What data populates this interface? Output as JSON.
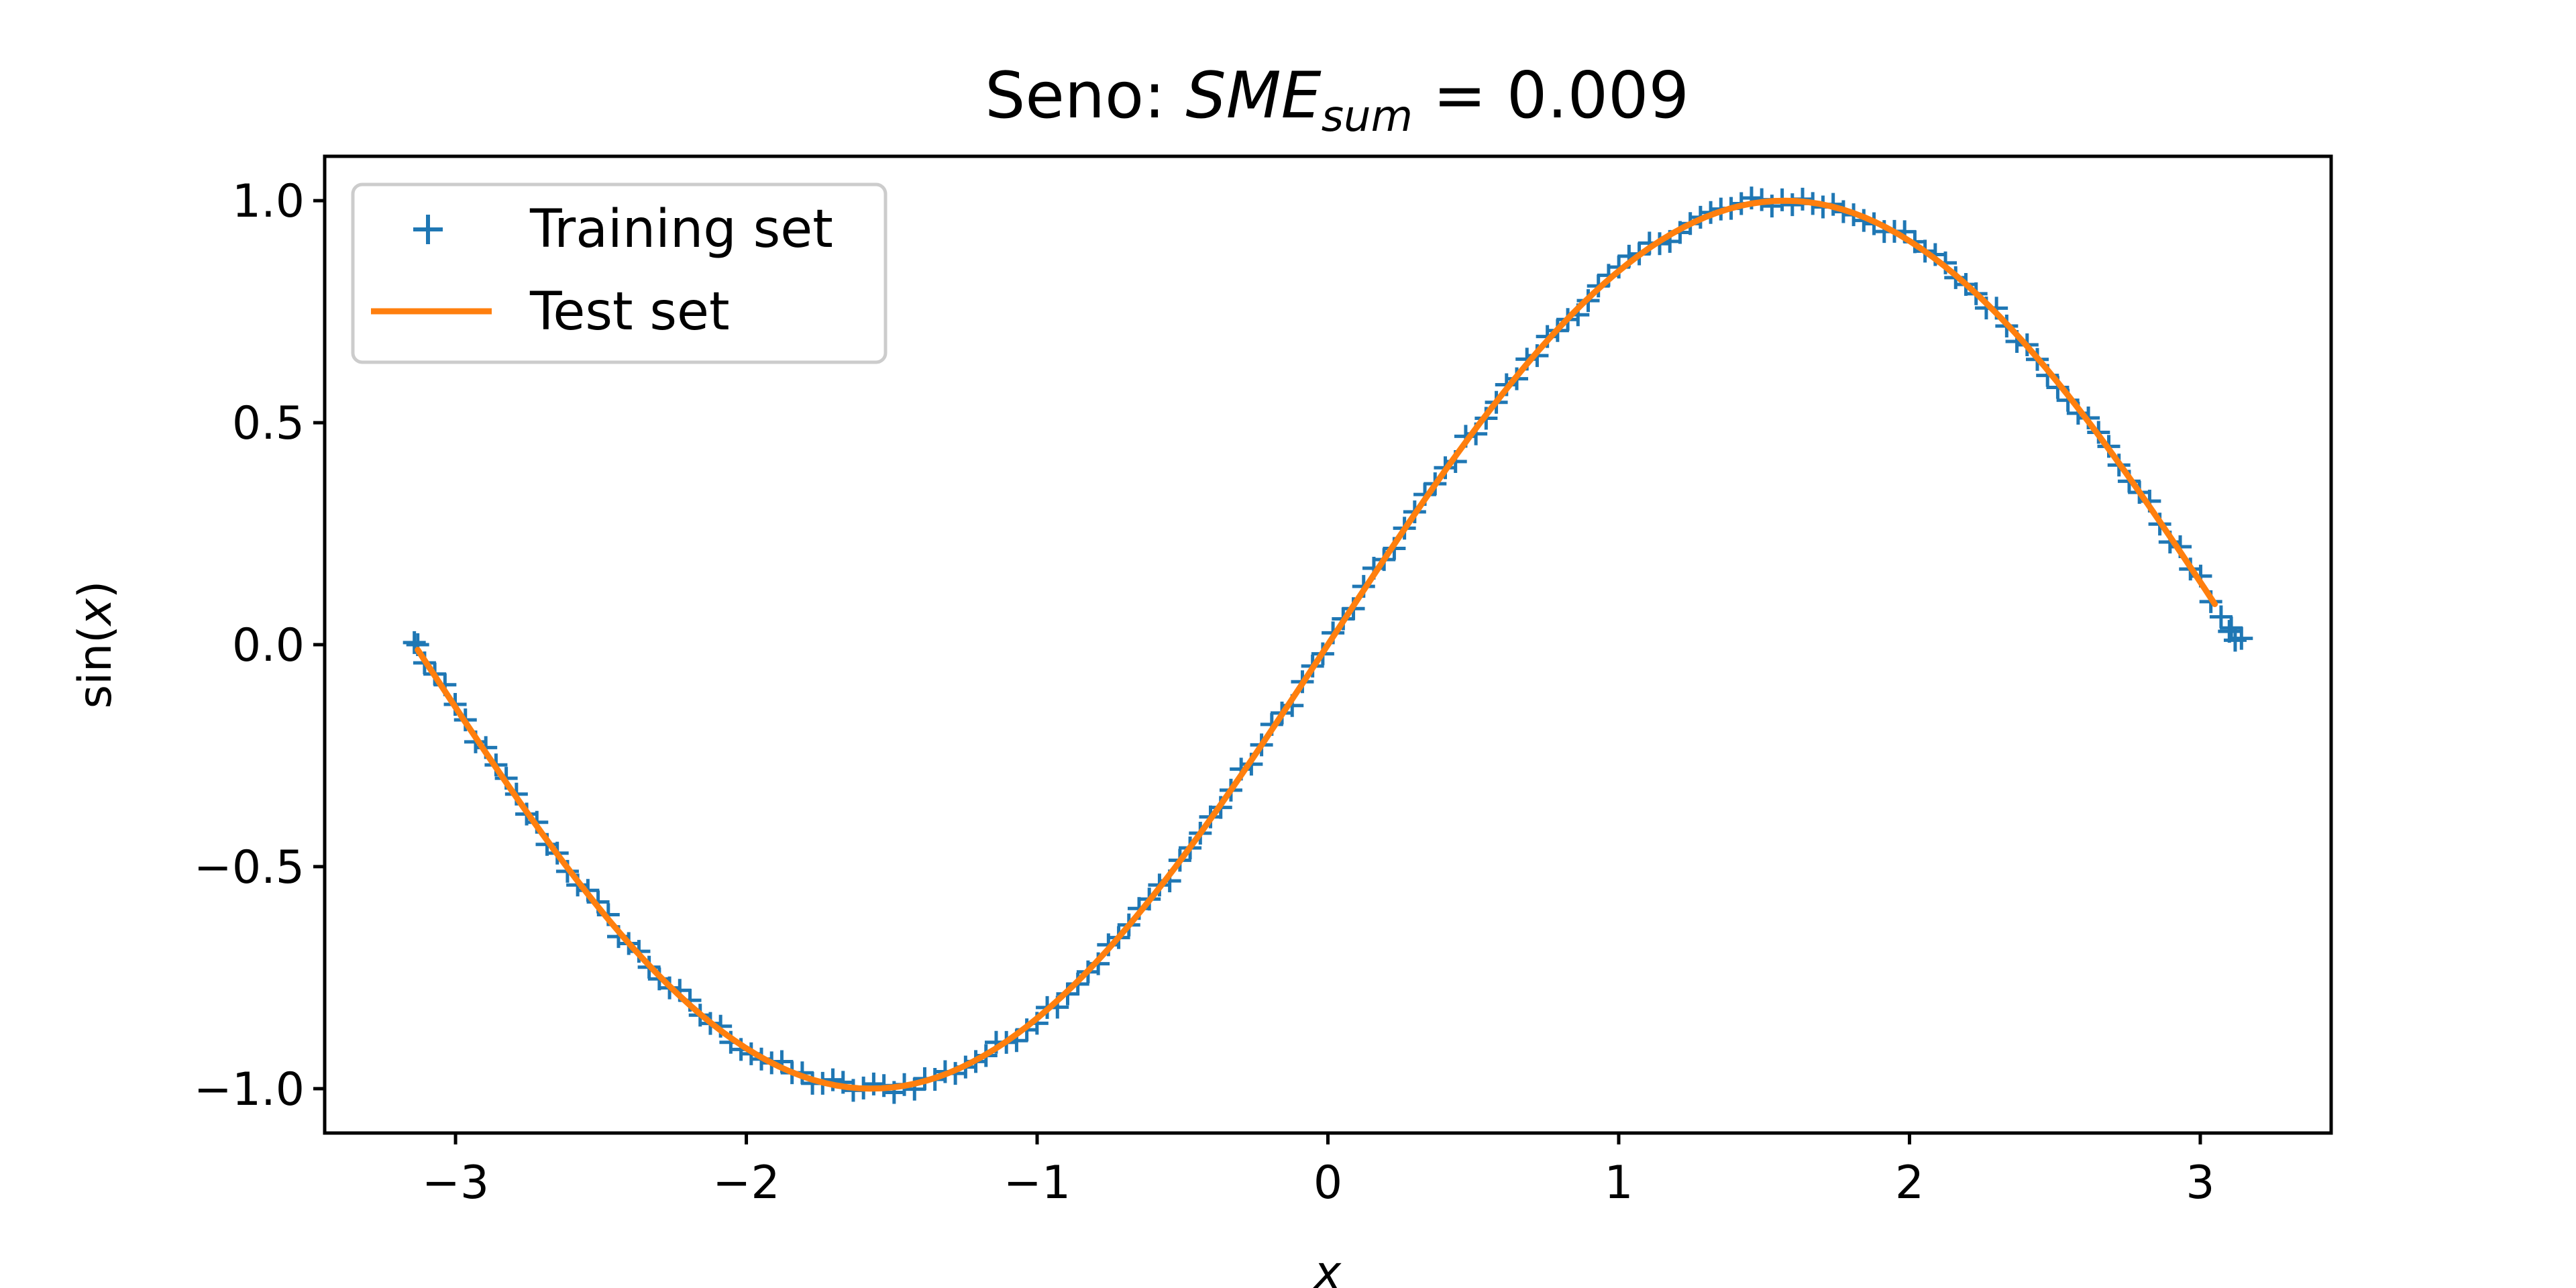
{
  "chart_data": {
    "type": "line",
    "title_prefix": "Seno: ",
    "title_math_main": "SME",
    "title_math_sub": "sum",
    "title_equals": " = 0.009",
    "xlabel": "x",
    "ylabel_prefix": "sin(",
    "ylabel_var": "x",
    "ylabel_suffix": ")",
    "xlim": [
      -3.45,
      3.45
    ],
    "ylim": [
      -1.1,
      1.1
    ],
    "xticks": [
      -3,
      -2,
      -1,
      0,
      1,
      2,
      3
    ],
    "xtick_labels": [
      "−3",
      "−2",
      "−1",
      "0",
      "1",
      "2",
      "3"
    ],
    "yticks": [
      -1.0,
      -0.5,
      0.0,
      0.5,
      1.0
    ],
    "ytick_labels": [
      "−1.0",
      "−0.5",
      "0.0",
      "0.5",
      "1.0"
    ],
    "grid": false,
    "legend_position": "upper-left",
    "series": [
      {
        "name": "Training set",
        "kind": "scatter",
        "marker": "+",
        "color": "#1f77b4",
        "function": "sin",
        "x_range": [
          -3.1416,
          3.1416
        ],
        "n_points": 180,
        "noise": 0.015,
        "extra_points": [
          [
            -3.13,
            0.0
          ],
          [
            3.1,
            0.03
          ],
          [
            3.12,
            0.01
          ]
        ]
      },
      {
        "name": "Test set",
        "kind": "line",
        "color": "#ff7f0e",
        "function": "sin",
        "x_range": [
          -3.13,
          3.05
        ],
        "n_points": 160
      }
    ]
  }
}
